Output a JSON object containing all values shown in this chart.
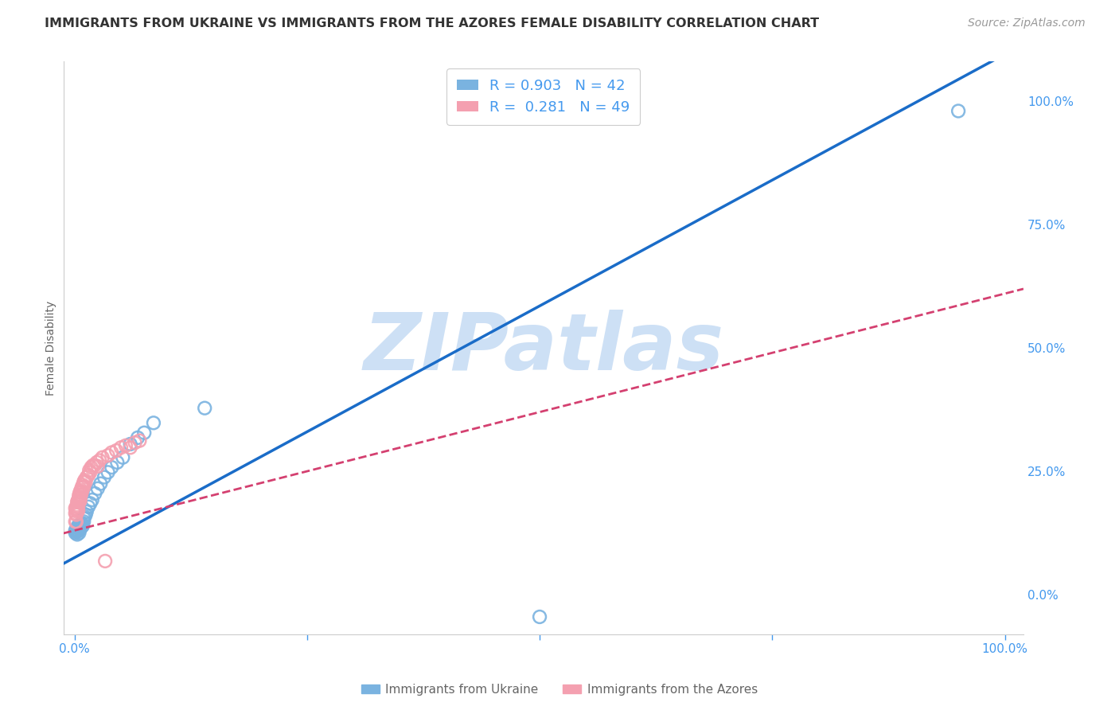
{
  "title": "IMMIGRANTS FROM UKRAINE VS IMMIGRANTS FROM THE AZORES FEMALE DISABILITY CORRELATION CHART",
  "source": "Source: ZipAtlas.com",
  "ylabel": "Female Disability",
  "xlabel_ukraine": "Immigrants from Ukraine",
  "xlabel_azores": "Immigrants from the Azores",
  "R_ukraine": 0.903,
  "N_ukraine": 42,
  "R_azores": 0.281,
  "N_azores": 49,
  "ukraine_color": "#7ab3e0",
  "ukraine_line_color": "#1a6cc8",
  "azores_color": "#f4a0b0",
  "azores_line_color": "#d44070",
  "watermark_color": "#cde0f5",
  "background_color": "#ffffff",
  "grid_color": "#cccccc",
  "tick_color": "#4499ee",
  "label_color": "#666666",
  "legend_text_color": "#4499ee",
  "title_color": "#333333",
  "source_color": "#999999",
  "ukraine_x": [
    0.001,
    0.001,
    0.002,
    0.002,
    0.003,
    0.003,
    0.003,
    0.004,
    0.004,
    0.005,
    0.005,
    0.005,
    0.006,
    0.006,
    0.007,
    0.007,
    0.008,
    0.008,
    0.009,
    0.01,
    0.01,
    0.011,
    0.012,
    0.013,
    0.015,
    0.017,
    0.019,
    0.022,
    0.025,
    0.028,
    0.032,
    0.036,
    0.04,
    0.046,
    0.052,
    0.06,
    0.068,
    0.075,
    0.085,
    0.14,
    0.5,
    0.95
  ],
  "ukraine_y": [
    0.13,
    0.125,
    0.128,
    0.132,
    0.122,
    0.135,
    0.128,
    0.13,
    0.14,
    0.125,
    0.135,
    0.14,
    0.132,
    0.138,
    0.142,
    0.136,
    0.138,
    0.145,
    0.14,
    0.148,
    0.155,
    0.158,
    0.162,
    0.168,
    0.178,
    0.185,
    0.192,
    0.205,
    0.215,
    0.225,
    0.238,
    0.248,
    0.258,
    0.268,
    0.278,
    0.305,
    0.318,
    0.328,
    0.348,
    0.378,
    -0.045,
    0.98
  ],
  "azores_x": [
    0.001,
    0.001,
    0.001,
    0.002,
    0.002,
    0.002,
    0.002,
    0.003,
    0.003,
    0.003,
    0.003,
    0.004,
    0.004,
    0.004,
    0.005,
    0.005,
    0.005,
    0.006,
    0.006,
    0.006,
    0.007,
    0.007,
    0.008,
    0.008,
    0.009,
    0.01,
    0.01,
    0.011,
    0.012,
    0.013,
    0.015,
    0.016,
    0.017,
    0.018,
    0.02,
    0.022,
    0.024,
    0.025,
    0.027,
    0.03,
    0.033,
    0.036,
    0.04,
    0.045,
    0.05,
    0.055,
    0.06,
    0.065,
    0.07
  ],
  "azores_y": [
    0.165,
    0.175,
    0.148,
    0.172,
    0.162,
    0.178,
    0.148,
    0.182,
    0.172,
    0.168,
    0.188,
    0.178,
    0.192,
    0.17,
    0.198,
    0.188,
    0.202,
    0.195,
    0.208,
    0.19,
    0.212,
    0.202,
    0.218,
    0.208,
    0.222,
    0.228,
    0.218,
    0.232,
    0.228,
    0.238,
    0.242,
    0.252,
    0.248,
    0.258,
    0.262,
    0.262,
    0.268,
    0.26,
    0.272,
    0.278,
    0.068,
    0.282,
    0.288,
    0.292,
    0.298,
    0.302,
    0.298,
    0.308,
    0.312
  ],
  "uk_slope": 1.02,
  "uk_intercept": 0.075,
  "az_slope": 0.48,
  "az_intercept": 0.13,
  "xlim": [
    -0.012,
    1.02
  ],
  "ylim": [
    -0.08,
    1.08
  ],
  "xticks": [
    0.0,
    0.25,
    0.5,
    0.75,
    1.0
  ],
  "yticks": [
    0.0,
    0.25,
    0.5,
    0.75,
    1.0
  ],
  "xticklabels": [
    "0.0%",
    "",
    "",
    "",
    "100.0%"
  ],
  "yticklabels": [
    "0.0%",
    "25.0%",
    "50.0%",
    "75.0%",
    "100.0%"
  ]
}
